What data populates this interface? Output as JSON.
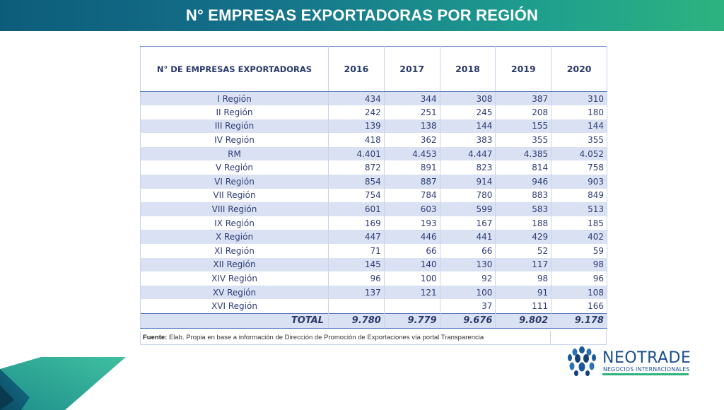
{
  "page": {
    "title": "N° EMPRESAS EXPORTADORAS POR REGIÓN"
  },
  "table": {
    "header_label": "N° DE EMPRESAS EXPORTADORAS",
    "years": [
      "2016",
      "2017",
      "2018",
      "2019",
      "2020"
    ],
    "rows": [
      {
        "region": "I Región",
        "values": [
          "434",
          "344",
          "308",
          "387",
          "310"
        ]
      },
      {
        "region": "II Región",
        "values": [
          "242",
          "251",
          "245",
          "208",
          "180"
        ]
      },
      {
        "region": "III Región",
        "values": [
          "139",
          "138",
          "144",
          "155",
          "144"
        ]
      },
      {
        "region": "IV Región",
        "values": [
          "418",
          "362",
          "383",
          "355",
          "355"
        ]
      },
      {
        "region": "RM",
        "values": [
          "4.401",
          "4.453",
          "4.447",
          "4.385",
          "4.052"
        ]
      },
      {
        "region": "V Región",
        "values": [
          "872",
          "891",
          "823",
          "814",
          "758"
        ]
      },
      {
        "region": "VI Región",
        "values": [
          "854",
          "887",
          "914",
          "946",
          "903"
        ]
      },
      {
        "region": "VII Región",
        "values": [
          "754",
          "784",
          "780",
          "883",
          "849"
        ]
      },
      {
        "region": "VIII Región",
        "values": [
          "601",
          "603",
          "599",
          "583",
          "513"
        ]
      },
      {
        "region": "IX Región",
        "values": [
          "169",
          "193",
          "167",
          "188",
          "185"
        ]
      },
      {
        "region": "X Región",
        "values": [
          "447",
          "446",
          "441",
          "429",
          "402"
        ]
      },
      {
        "region": "XI Región",
        "values": [
          "71",
          "66",
          "66",
          "52",
          "59"
        ]
      },
      {
        "region": "XII Región",
        "values": [
          "145",
          "140",
          "130",
          "117",
          "98"
        ]
      },
      {
        "region": "XIV Región",
        "values": [
          "96",
          "100",
          "92",
          "98",
          "96"
        ]
      },
      {
        "region": "XV Región",
        "values": [
          "137",
          "121",
          "100",
          "91",
          "108"
        ]
      },
      {
        "region": "XVI Región",
        "values": [
          "",
          "",
          "37",
          "111",
          "166"
        ]
      }
    ],
    "total": {
      "label": "TOTAL",
      "values": [
        "9.780",
        "9.779",
        "9.676",
        "9.802",
        "9.178"
      ]
    }
  },
  "source": {
    "label": "Fuente:",
    "text": " Elab. Propia en base a información de Dirección de Promoción de Exportaciones vía portal Transparencia"
  },
  "logo": {
    "name": "NEOTRADE",
    "tagline": "NEGOCIOS INTERNACIONALES",
    "icon": "neotrade-globe-icon"
  },
  "colors": {
    "banner_start": "#0d5d7a",
    "banner_end": "#2cb37f",
    "row_band": "#d9e1f3",
    "table_text": "#2e3d75",
    "accent_teal": "#2cb37f"
  }
}
